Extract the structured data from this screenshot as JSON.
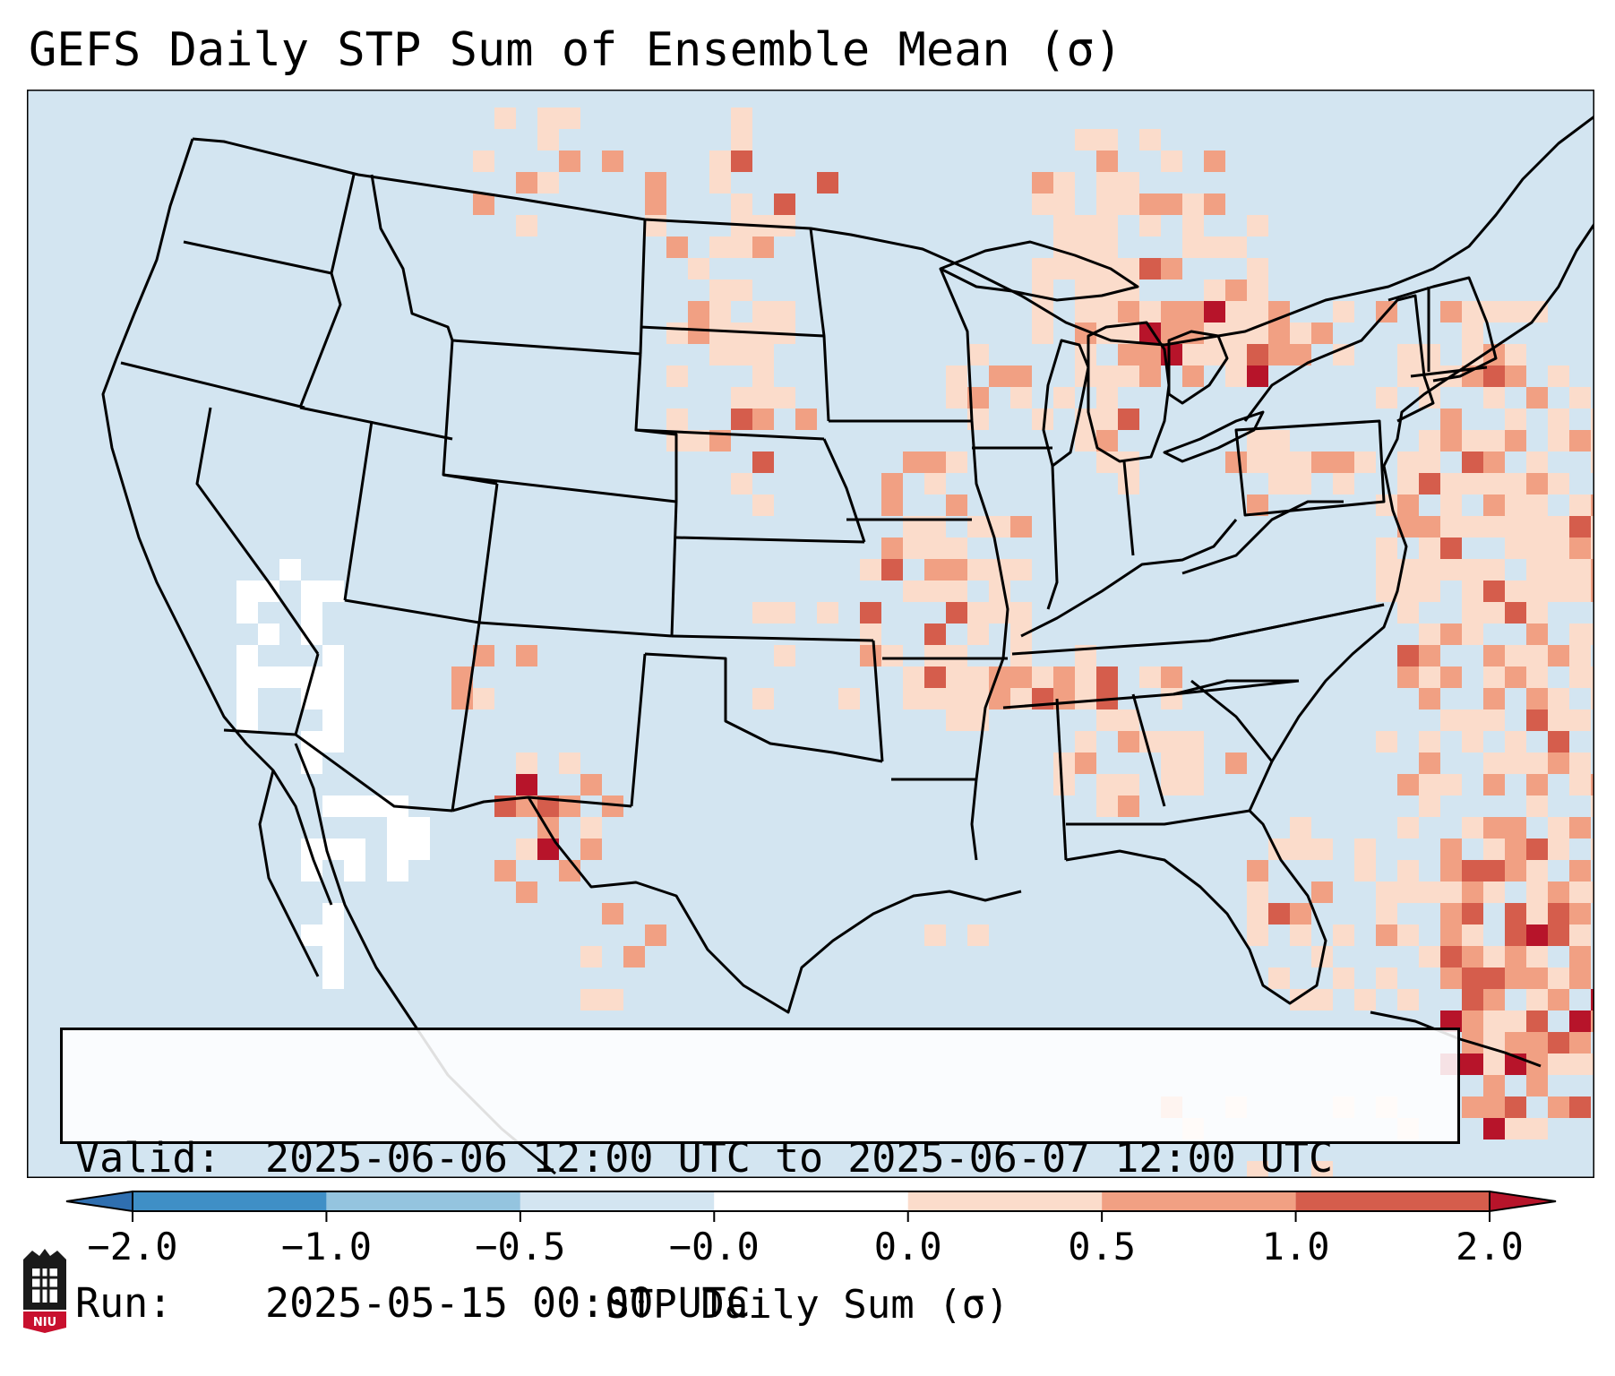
{
  "title": "GEFS Daily STP Sum of Ensemble Mean (σ)",
  "info": {
    "valid_key": "Valid:",
    "valid_value": "2025-06-06 12:00 UTC to 2025-06-07 12:00 UTC",
    "run_key": "Run:",
    "run_value": "2025-05-15 00:00 UTC"
  },
  "colorbar": {
    "label": "STP Daily Sum (σ)",
    "ticks": [
      "−2.0",
      "−1.0",
      "−0.5",
      "−0.0",
      "0.0",
      "0.5",
      "1.0",
      "2.0"
    ],
    "colors": [
      "#3f8fc6",
      "#94c4df",
      "#d3e5f1",
      "#ffffff",
      "#fbdccb",
      "#f1a083",
      "#d55d4c"
    ],
    "extend_low": "#2f6fb0",
    "extend_high": "#b7142a"
  },
  "map": {
    "ocean_land_color": "#d3e5f1",
    "light_red": "#fbdccb",
    "mid_red": "#f1a083",
    "dark_red": "#d55d4c",
    "deep_red": "#b7142a",
    "white": "#ffffff"
  },
  "logo": {
    "text": "NIU"
  }
}
